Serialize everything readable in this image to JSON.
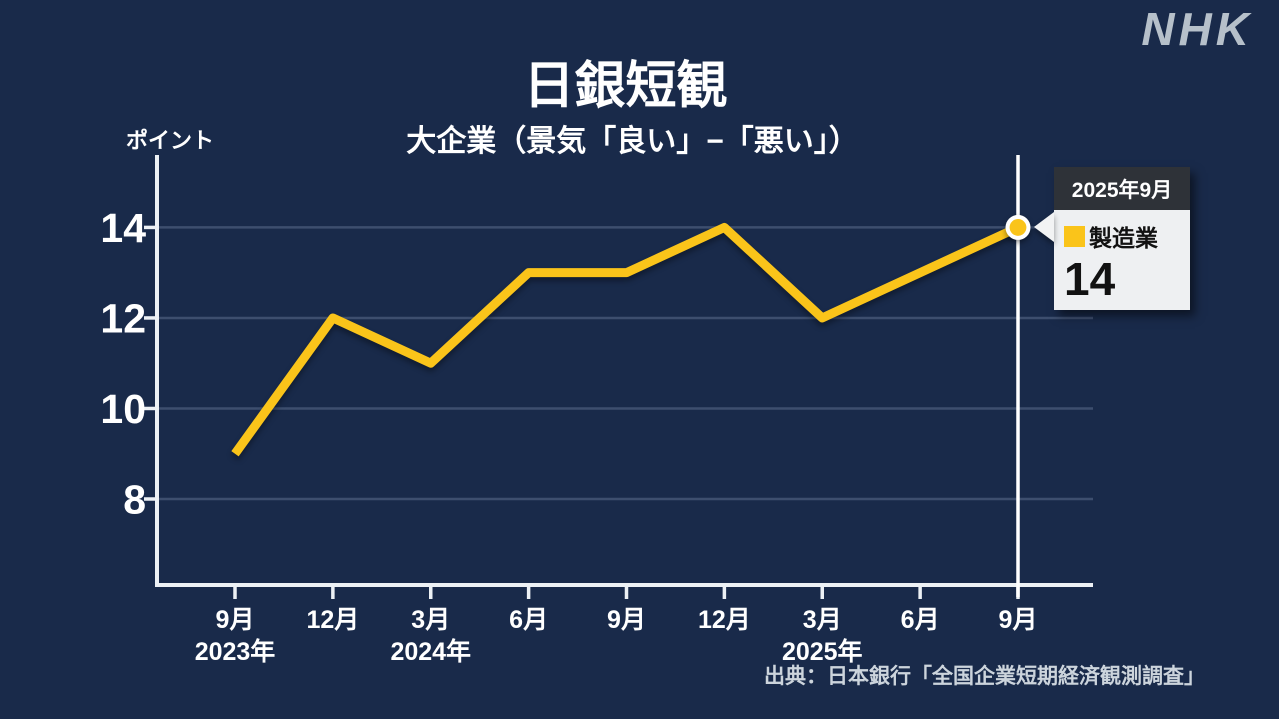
{
  "brand": {
    "logo_text": "NHK"
  },
  "chart_data": {
    "type": "line",
    "title": "日銀短観",
    "subtitle": "大企業（景気「良い」−「悪い」）",
    "ylabel": "ポイント",
    "xlabel": "",
    "categories": [
      "9月",
      "12月",
      "3月",
      "6月",
      "9月",
      "12月",
      "3月",
      "6月",
      "9月"
    ],
    "year_markers": [
      {
        "category_index": 0,
        "label": "2023年"
      },
      {
        "category_index": 2,
        "label": "2024年"
      },
      {
        "category_index": 6,
        "label": "2025年"
      }
    ],
    "series": [
      {
        "name": "製造業",
        "values": [
          9,
          12,
          11,
          13,
          13,
          14,
          12,
          13,
          14
        ]
      }
    ],
    "yticks": [
      14,
      12,
      10,
      8
    ],
    "ylim": [
      6.1,
      15.6
    ],
    "grid": true,
    "legend_position": "callout",
    "highlight": {
      "category_index": 8,
      "label": "2025年9月",
      "series": "製造業",
      "value": 14
    }
  },
  "callout": {
    "title": "2025年9月",
    "series_label": "製造業",
    "value": "14"
  },
  "footer": {
    "source": "出典：日本銀行「全国企業短期経済観測調査」"
  },
  "colors": {
    "background": "#192a4a",
    "accent": "#fac41a",
    "grid": "#3d4e6e",
    "axis": "#edf1f5",
    "highlight_line": "#ffffff",
    "marker_ring": "#ffffff",
    "callout_header_bg": "#2e3238",
    "callout_body_bg": "#eef0f2",
    "callout_text": "#121212",
    "logo": "#b6c0ca",
    "source_text": "#ccd4dc",
    "text": "#ffffff"
  }
}
